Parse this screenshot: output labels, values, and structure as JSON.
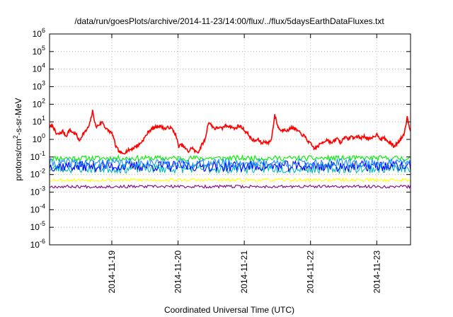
{
  "chart_data": {
    "type": "line",
    "title": "/data/run/goesPlots/archive/2014-11-23/14:00/flux/../flux/5daysEarthDataFluxes.txt",
    "xlabel": "Coordinated Universal Time (UTC)",
    "ylabel": {
      "prefix": "protons/cm",
      "sup": "2",
      "suffix": "-s-sr-MeV"
    },
    "scale_y": "log",
    "ylim_exp": [
      -6,
      6
    ],
    "ytick_exps": [
      "-6",
      "-5",
      "-4",
      "-3",
      "-2",
      "-1",
      "0",
      "1",
      "2",
      "3",
      "4",
      "5",
      "6"
    ],
    "ytick_base": "10",
    "xlim_days": [
      0,
      5.45
    ],
    "xticks": [
      {
        "label": "2014-11-19",
        "day": 0.94
      },
      {
        "label": "2014-11-20",
        "day": 1.94
      },
      {
        "label": "2014-11-21",
        "day": 2.94
      },
      {
        "label": "2014-11-22",
        "day": 3.94
      },
      {
        "label": "2014-11-23",
        "day": 4.94
      }
    ],
    "grid": true,
    "series": [
      {
        "color": "#ff0000",
        "kind": "smooth",
        "points": [
          [
            0.0,
            5.0
          ],
          [
            0.05,
            6.0
          ],
          [
            0.1,
            2.0
          ],
          [
            0.15,
            2.0
          ],
          [
            0.2,
            3.0
          ],
          [
            0.25,
            1.5
          ],
          [
            0.3,
            3.5
          ],
          [
            0.35,
            2.5
          ],
          [
            0.4,
            2.0
          ],
          [
            0.45,
            0.8
          ],
          [
            0.5,
            2.0
          ],
          [
            0.55,
            3.0
          ],
          [
            0.6,
            6.0
          ],
          [
            0.65,
            40.0
          ],
          [
            0.7,
            5.0
          ],
          [
            0.75,
            7.0
          ],
          [
            0.8,
            10.0
          ],
          [
            0.85,
            4.0
          ],
          [
            0.9,
            3.0
          ],
          [
            0.95,
            2.0
          ],
          [
            1.0,
            0.4
          ],
          [
            1.05,
            0.2
          ],
          [
            1.1,
            0.15
          ],
          [
            1.15,
            0.2
          ],
          [
            1.2,
            0.25
          ],
          [
            1.25,
            0.3
          ],
          [
            1.3,
            0.4
          ],
          [
            1.35,
            0.5
          ],
          [
            1.4,
            0.8
          ],
          [
            1.45,
            1.5
          ],
          [
            1.5,
            3.0
          ],
          [
            1.55,
            4.0
          ],
          [
            1.6,
            5.0
          ],
          [
            1.65,
            6.0
          ],
          [
            1.7,
            5.0
          ],
          [
            1.75,
            4.0
          ],
          [
            1.8,
            5.0
          ],
          [
            1.85,
            4.0
          ],
          [
            1.9,
            2.0
          ],
          [
            1.95,
            0.4
          ],
          [
            2.0,
            0.5
          ],
          [
            2.05,
            0.3
          ],
          [
            2.1,
            0.2
          ],
          [
            2.15,
            0.35
          ],
          [
            2.2,
            0.2
          ],
          [
            2.25,
            0.2
          ],
          [
            2.3,
            0.5
          ],
          [
            2.35,
            1.0
          ],
          [
            2.4,
            10.0
          ],
          [
            2.45,
            6.0
          ],
          [
            2.5,
            4.0
          ],
          [
            2.55,
            5.0
          ],
          [
            2.6,
            4.0
          ],
          [
            2.65,
            6.0
          ],
          [
            2.7,
            6.0
          ],
          [
            2.75,
            5.0
          ],
          [
            2.8,
            4.0
          ],
          [
            2.85,
            6.0
          ],
          [
            2.9,
            5.0
          ],
          [
            2.95,
            3.0
          ],
          [
            3.0,
            2.0
          ],
          [
            3.05,
            1.0
          ],
          [
            3.1,
            0.8
          ],
          [
            3.15,
            1.0
          ],
          [
            3.2,
            0.6
          ],
          [
            3.25,
            0.8
          ],
          [
            3.3,
            0.6
          ],
          [
            3.35,
            1.0
          ],
          [
            3.4,
            25.0
          ],
          [
            3.45,
            5.0
          ],
          [
            3.5,
            3.0
          ],
          [
            3.55,
            4.0
          ],
          [
            3.6,
            3.0
          ],
          [
            3.65,
            5.0
          ],
          [
            3.7,
            4.0
          ],
          [
            3.75,
            3.0
          ],
          [
            3.8,
            2.0
          ],
          [
            3.85,
            1.5
          ],
          [
            3.9,
            0.8
          ],
          [
            3.95,
            0.5
          ],
          [
            4.0,
            0.3
          ],
          [
            4.05,
            0.4
          ],
          [
            4.1,
            0.6
          ],
          [
            4.15,
            0.8
          ],
          [
            4.2,
            1.0
          ],
          [
            4.25,
            0.6
          ],
          [
            4.3,
            0.8
          ],
          [
            4.35,
            1.2
          ],
          [
            4.4,
            0.6
          ],
          [
            4.45,
            1.5
          ],
          [
            4.5,
            1.0
          ],
          [
            4.55,
            1.5
          ],
          [
            4.6,
            1.2
          ],
          [
            4.65,
            1.5
          ],
          [
            4.7,
            1.2
          ],
          [
            4.75,
            1.5
          ],
          [
            4.8,
            1.2
          ],
          [
            4.85,
            1.0
          ],
          [
            4.9,
            1.5
          ],
          [
            4.95,
            2.0
          ],
          [
            5.0,
            1.0
          ],
          [
            5.05,
            1.2
          ],
          [
            5.1,
            0.8
          ],
          [
            5.15,
            0.6
          ],
          [
            5.2,
            0.4
          ],
          [
            5.25,
            0.6
          ],
          [
            5.3,
            1.0
          ],
          [
            5.35,
            2.0
          ],
          [
            5.4,
            18.0
          ],
          [
            5.45,
            3.0
          ]
        ]
      },
      {
        "color": "#00ee00",
        "kind": "band",
        "lo": 0.06,
        "hi": 0.12,
        "seed": 11
      },
      {
        "color": "#00bbbb",
        "kind": "band",
        "lo": 0.012,
        "hi": 0.04,
        "seed": 23
      },
      {
        "color": "#0000ff",
        "kind": "band",
        "lo": 0.015,
        "hi": 0.06,
        "seed": 37
      },
      {
        "color": "#1e90ff",
        "kind": "band",
        "lo": 0.025,
        "hi": 0.08,
        "seed": 41
      },
      {
        "color": "#ffff00",
        "kind": "band",
        "lo": 0.004,
        "hi": 0.006,
        "seed": 53
      },
      {
        "color": "#800080",
        "kind": "band",
        "lo": 0.0017,
        "hi": 0.0025,
        "seed": 67
      }
    ]
  }
}
